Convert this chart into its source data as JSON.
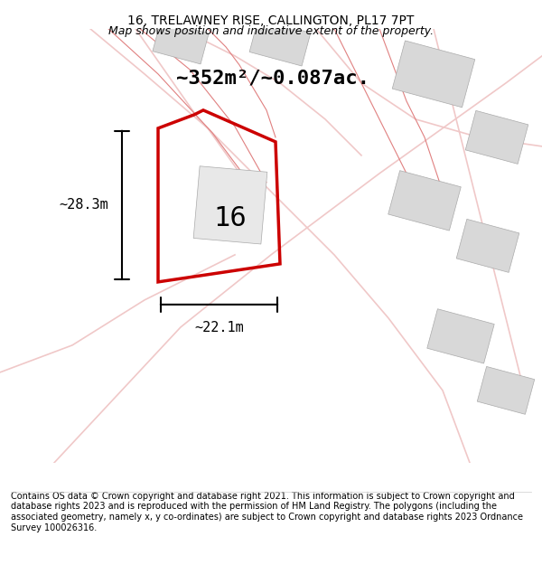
{
  "title": "16, TRELAWNEY RISE, CALLINGTON, PL17 7PT",
  "subtitle": "Map shows position and indicative extent of the property.",
  "area_text": "~352m²/~0.087ac.",
  "width_label": "~22.1m",
  "height_label": "~28.3m",
  "number_label": "16",
  "footer": "Contains OS data © Crown copyright and database right 2021. This information is subject to Crown copyright and database rights 2023 and is reproduced with the permission of HM Land Registry. The polygons (including the associated geometry, namely x, y co-ordinates) are subject to Crown copyright and database rights 2023 Ordnance Survey 100026316.",
  "bg_color": "#f5f4f2",
  "map_bg_color": "#f5f4f2",
  "road_color": "#f0c8c8",
  "building_color": "#d8d8d8",
  "red_plot_color": "#cc0000",
  "red_boundary_color": "#e08080",
  "title_color": "#000000",
  "subtitle_color": "#000000",
  "footer_color": "#000000"
}
